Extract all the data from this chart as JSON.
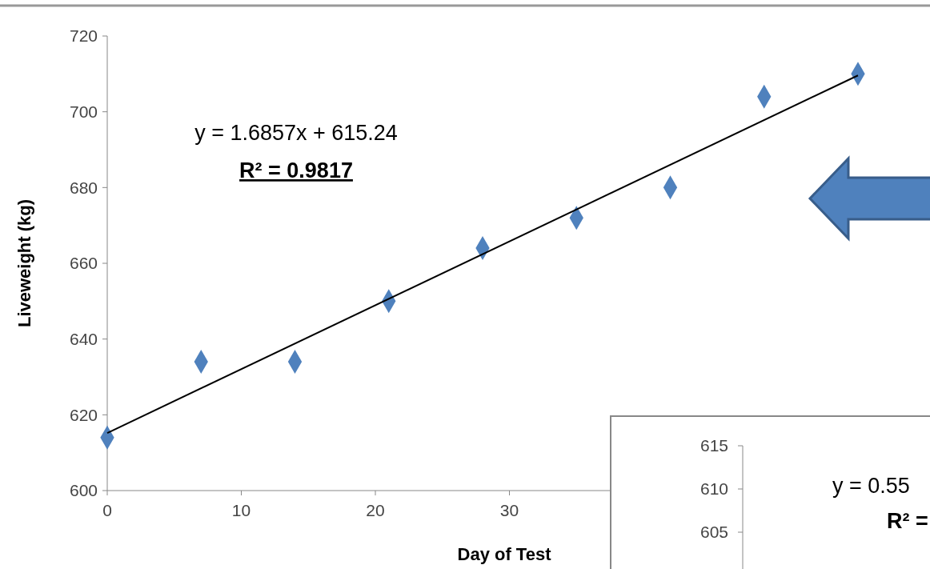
{
  "chart_data": [
    {
      "type": "scatter",
      "xlabel": "Day of Test",
      "ylabel": "Liveweight (kg)",
      "x": [
        0,
        7,
        14,
        21,
        28,
        35,
        42,
        49,
        56
      ],
      "xlim": [
        0,
        60
      ],
      "xticks": [
        0,
        10,
        20,
        30
      ],
      "ylim": [
        600,
        720
      ],
      "yticks": [
        600,
        620,
        640,
        660,
        680,
        700,
        720
      ],
      "grid": false,
      "series": [
        {
          "color": "#4f81bd",
          "marker": "diamond",
          "values": [
            614,
            634,
            634,
            650,
            664,
            672,
            680,
            704,
            710
          ]
        },
        {
          "type": "line",
          "color": "#000000",
          "x": [
            0,
            56
          ],
          "values": [
            615.2,
            709.6
          ]
        }
      ],
      "annotations": [
        "y = 1.6857x + 615.24",
        "R² = 0.9817"
      ]
    },
    {
      "type": "other",
      "annotations": [
        "615",
        "610",
        "605",
        "y = 0.55",
        "R² ="
      ]
    }
  ]
}
